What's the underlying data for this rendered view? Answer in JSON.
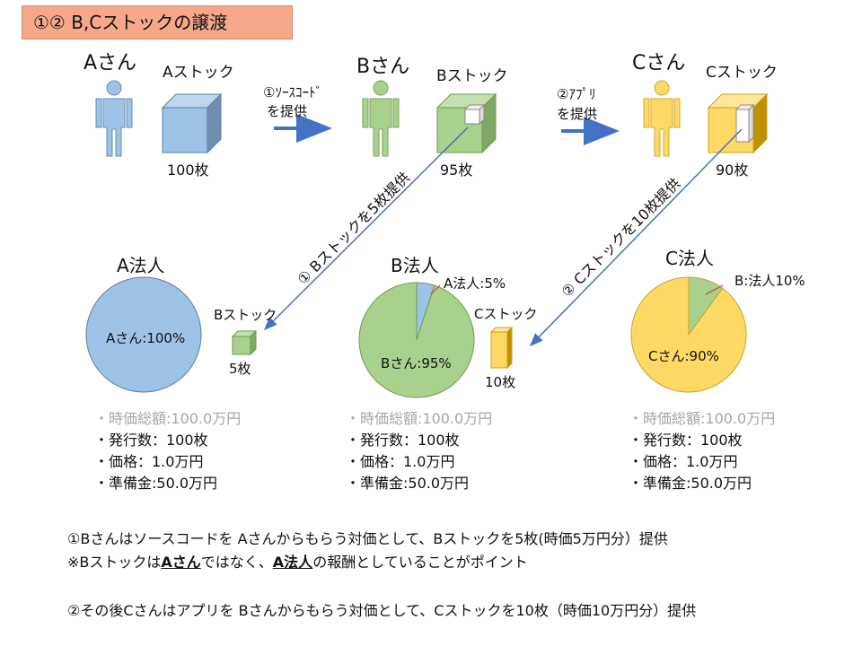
{
  "title": "①② B,Cストックの譲渡",
  "people": [
    {
      "name": "Aさん",
      "stock_label": "Aストック",
      "count": "100枚"
    },
    {
      "name": "Bさん",
      "stock_label": "Bストック",
      "count": "95枚"
    },
    {
      "name": "Cさん",
      "stock_label": "Cストック",
      "count": "90枚"
    }
  ],
  "arrows": {
    "ab_line1": "①ｿｰｽｺｰﾄﾞ",
    "ab_line2": "を提供",
    "bc_line1": "②ｱﾌﾟﾘ",
    "bc_line2": "を提供",
    "diag_b": "① Bストックを5枚提供",
    "diag_c": "② Cストックを10枚提供"
  },
  "corps": [
    {
      "name": "A法人",
      "pie_label": "Aさん:100%",
      "stock_label": "Bストック",
      "stock_count": "5枚",
      "stats": [
        "・時価総額:100.0万円",
        "・発行数：100枚",
        "・価格：1.0万円",
        "・準備金:50.0万円"
      ]
    },
    {
      "name": "B法人",
      "pie_main_label": "Bさん:95%",
      "pie_minor_label": "A法人:5%",
      "stock_label": "Cストック",
      "stock_count": "10枚",
      "stats": [
        "・時価総額:100.0万円",
        "・発行数：100枚",
        "・価格：1.0万円",
        "・準備金:50.0万円"
      ]
    },
    {
      "name": "C法人",
      "pie_main_label": "Cさん:90%",
      "pie_minor_label": "B:法人10%",
      "stats": [
        "・時価総額:100.0万円",
        "・発行数：100枚",
        "・価格：1.0万円",
        "・準備金:50.0万円"
      ]
    }
  ],
  "chart_data": [
    {
      "type": "pie",
      "title": "A法人",
      "categories": [
        "Aさん"
      ],
      "values": [
        100
      ]
    },
    {
      "type": "pie",
      "title": "B法人",
      "categories": [
        "A法人",
        "Bさん"
      ],
      "values": [
        5,
        95
      ]
    },
    {
      "type": "pie",
      "title": "C法人",
      "categories": [
        "B:法人",
        "Cさん"
      ],
      "values": [
        10,
        90
      ]
    }
  ],
  "notes": {
    "line1": "①Bさんはソースコードを Aさんからもらう対価として、Bストックを5枚(時価5万円分）提供",
    "line2_pre": "※Bストックは",
    "line2_a": "Aさん",
    "line2_mid": "ではなく、",
    "line2_b": "A法人",
    "line2_post": "の報酬としていることがポイント",
    "line3": "②その後Cさんはアプリを Bさんからもらう対価として、Cストックを10枚（時価10万円分）提供"
  },
  "colors": {
    "blue": "#9dc3e6",
    "green": "#a9d18e",
    "yellow": "#ffd966",
    "arrow": "#4472c4",
    "title_bg": "#f5a98a"
  }
}
